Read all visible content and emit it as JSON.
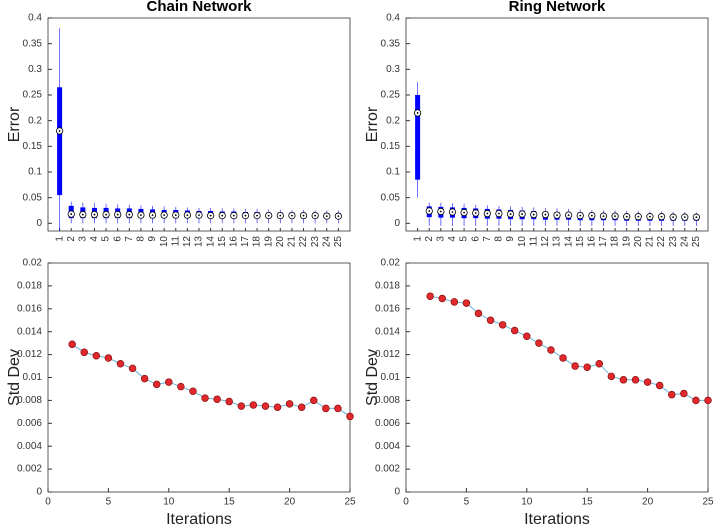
{
  "chart_data": [
    {
      "type": "box",
      "title": "Chain Network",
      "y_label": "Error",
      "color": "#0000ff",
      "categories": [
        "1",
        "2",
        "3",
        "4",
        "5",
        "6",
        "7",
        "8",
        "9",
        "10",
        "11",
        "12",
        "13",
        "14",
        "15",
        "16",
        "17",
        "18",
        "19",
        "20",
        "21",
        "22",
        "23",
        "24",
        "25"
      ],
      "boxes": [
        {
          "low": -0.014,
          "q1": 0.055,
          "median": 0.18,
          "q3": 0.265,
          "high": 0.38
        },
        {
          "low": 0.0,
          "q1": 0.01,
          "median": 0.018,
          "q3": 0.034,
          "high": 0.042
        },
        {
          "low": 0.0,
          "q1": 0.01,
          "median": 0.017,
          "q3": 0.031,
          "high": 0.04
        },
        {
          "low": 0.0,
          "q1": 0.01,
          "median": 0.017,
          "q3": 0.03,
          "high": 0.039
        },
        {
          "low": 0.0,
          "q1": 0.01,
          "median": 0.017,
          "q3": 0.03,
          "high": 0.038
        },
        {
          "low": 0.0,
          "q1": 0.01,
          "median": 0.017,
          "q3": 0.029,
          "high": 0.037
        },
        {
          "low": 0.0,
          "q1": 0.01,
          "median": 0.017,
          "q3": 0.029,
          "high": 0.036
        },
        {
          "low": 0.0,
          "q1": 0.01,
          "median": 0.016,
          "q3": 0.028,
          "high": 0.035
        },
        {
          "low": 0.0,
          "q1": 0.01,
          "median": 0.016,
          "q3": 0.027,
          "high": 0.034
        },
        {
          "low": 0.0,
          "q1": 0.01,
          "median": 0.016,
          "q3": 0.026,
          "high": 0.033
        },
        {
          "low": 0.0,
          "q1": 0.01,
          "median": 0.016,
          "q3": 0.026,
          "high": 0.032
        },
        {
          "low": 0.0,
          "q1": 0.01,
          "median": 0.016,
          "q3": 0.025,
          "high": 0.031
        },
        {
          "low": 0.0,
          "q1": 0.01,
          "median": 0.016,
          "q3": 0.024,
          "high": 0.03
        },
        {
          "low": 0.0,
          "q1": 0.01,
          "median": 0.015,
          "q3": 0.024,
          "high": 0.03
        },
        {
          "low": 0.0,
          "q1": 0.01,
          "median": 0.015,
          "q3": 0.023,
          "high": 0.029
        },
        {
          "low": 0.0,
          "q1": 0.01,
          "median": 0.015,
          "q3": 0.023,
          "high": 0.029
        },
        {
          "low": 0.0,
          "q1": 0.01,
          "median": 0.015,
          "q3": 0.022,
          "high": 0.028
        },
        {
          "low": 0.0,
          "q1": 0.01,
          "median": 0.015,
          "q3": 0.022,
          "high": 0.028
        },
        {
          "low": 0.0,
          "q1": 0.01,
          "median": 0.015,
          "q3": 0.021,
          "high": 0.027
        },
        {
          "low": 0.0,
          "q1": 0.01,
          "median": 0.015,
          "q3": 0.021,
          "high": 0.027
        },
        {
          "low": 0.0,
          "q1": 0.01,
          "median": 0.015,
          "q3": 0.021,
          "high": 0.026
        },
        {
          "low": 0.0,
          "q1": 0.01,
          "median": 0.015,
          "q3": 0.02,
          "high": 0.026
        },
        {
          "low": 0.0,
          "q1": 0.01,
          "median": 0.015,
          "q3": 0.02,
          "high": 0.025
        },
        {
          "low": 0.0,
          "q1": 0.01,
          "median": 0.014,
          "q3": 0.02,
          "high": 0.025
        },
        {
          "low": 0.0,
          "q1": 0.009,
          "median": 0.014,
          "q3": 0.02,
          "high": 0.025
        }
      ],
      "ylim": [
        -0.015,
        0.4
      ],
      "yticks": [
        0,
        0.05,
        0.1,
        0.15,
        0.2,
        0.25,
        0.3,
        0.35,
        0.4
      ]
    },
    {
      "type": "box",
      "title": "Ring Network",
      "y_label": "Error",
      "color": "#0000ff",
      "categories": [
        "1",
        "2",
        "3",
        "4",
        "5",
        "6",
        "7",
        "8",
        "9",
        "10",
        "11",
        "12",
        "13",
        "14",
        "15",
        "16",
        "17",
        "18",
        "19",
        "20",
        "21",
        "22",
        "23",
        "24",
        "25"
      ],
      "boxes": [
        {
          "low": 0.05,
          "q1": 0.085,
          "median": 0.215,
          "q3": 0.25,
          "high": 0.275
        },
        {
          "low": -0.005,
          "q1": 0.012,
          "median": 0.024,
          "q3": 0.033,
          "high": 0.04
        },
        {
          "low": -0.005,
          "q1": 0.011,
          "median": 0.023,
          "q3": 0.032,
          "high": 0.04
        },
        {
          "low": -0.005,
          "q1": 0.011,
          "median": 0.022,
          "q3": 0.031,
          "high": 0.039
        },
        {
          "low": -0.005,
          "q1": 0.01,
          "median": 0.021,
          "q3": 0.03,
          "high": 0.038
        },
        {
          "low": -0.005,
          "q1": 0.01,
          "median": 0.02,
          "q3": 0.029,
          "high": 0.036
        },
        {
          "low": -0.005,
          "q1": 0.009,
          "median": 0.019,
          "q3": 0.028,
          "high": 0.035
        },
        {
          "low": -0.005,
          "q1": 0.009,
          "median": 0.019,
          "q3": 0.027,
          "high": 0.034
        },
        {
          "low": -0.005,
          "q1": 0.008,
          "median": 0.018,
          "q3": 0.026,
          "high": 0.033
        },
        {
          "low": -0.005,
          "q1": 0.008,
          "median": 0.018,
          "q3": 0.025,
          "high": 0.032
        },
        {
          "low": -0.005,
          "q1": 0.008,
          "median": 0.017,
          "q3": 0.024,
          "high": 0.031
        },
        {
          "low": -0.005,
          "q1": 0.007,
          "median": 0.017,
          "q3": 0.023,
          "high": 0.03
        },
        {
          "low": -0.005,
          "q1": 0.007,
          "median": 0.016,
          "q3": 0.022,
          "high": 0.029
        },
        {
          "low": -0.005,
          "q1": 0.007,
          "median": 0.016,
          "q3": 0.021,
          "high": 0.028
        },
        {
          "low": -0.005,
          "q1": 0.006,
          "median": 0.015,
          "q3": 0.021,
          "high": 0.027
        },
        {
          "low": -0.005,
          "q1": 0.006,
          "median": 0.015,
          "q3": 0.02,
          "high": 0.026
        },
        {
          "low": -0.005,
          "q1": 0.006,
          "median": 0.014,
          "q3": 0.019,
          "high": 0.025
        },
        {
          "low": -0.005,
          "q1": 0.006,
          "median": 0.014,
          "q3": 0.019,
          "high": 0.025
        },
        {
          "low": -0.005,
          "q1": 0.005,
          "median": 0.013,
          "q3": 0.018,
          "high": 0.024
        },
        {
          "low": -0.005,
          "q1": 0.005,
          "median": 0.013,
          "q3": 0.018,
          "high": 0.024
        },
        {
          "low": -0.005,
          "q1": 0.005,
          "median": 0.013,
          "q3": 0.017,
          "high": 0.023
        },
        {
          "low": -0.005,
          "q1": 0.005,
          "median": 0.013,
          "q3": 0.017,
          "high": 0.023
        },
        {
          "low": -0.005,
          "q1": 0.005,
          "median": 0.012,
          "q3": 0.016,
          "high": 0.022
        },
        {
          "low": -0.005,
          "q1": 0.005,
          "median": 0.012,
          "q3": 0.016,
          "high": 0.022
        },
        {
          "low": -0.005,
          "q1": 0.005,
          "median": 0.012,
          "q3": 0.015,
          "high": 0.021
        }
      ],
      "ylim": [
        -0.015,
        0.4
      ],
      "yticks": [
        0,
        0.05,
        0.1,
        0.15,
        0.2,
        0.25,
        0.3,
        0.35,
        0.4
      ]
    },
    {
      "type": "line",
      "x_label": "Iterations",
      "y_label": "Std Dev",
      "x": [
        2,
        3,
        4,
        5,
        6,
        7,
        8,
        9,
        10,
        11,
        12,
        13,
        14,
        15,
        16,
        17,
        18,
        19,
        20,
        21,
        22,
        23,
        24,
        25
      ],
      "series": [
        {
          "color": "#6ab4dc",
          "marker_color": "#e0282d",
          "values": [
            0.0129,
            0.0122,
            0.0119,
            0.0117,
            0.0112,
            0.0108,
            0.0099,
            0.0094,
            0.0096,
            0.0092,
            0.0088,
            0.0082,
            0.0081,
            0.0079,
            0.0075,
            0.0076,
            0.0075,
            0.0074,
            0.0077,
            0.0074,
            0.008,
            0.0073,
            0.0073,
            0.0066
          ]
        }
      ],
      "xlim": [
        0,
        25
      ],
      "xticks": [
        0,
        5,
        10,
        15,
        20,
        25
      ],
      "ylim": [
        0,
        0.02
      ],
      "yticks": [
        0,
        0.002,
        0.004,
        0.006,
        0.008,
        0.01,
        0.012,
        0.014,
        0.016,
        0.018,
        0.02
      ]
    },
    {
      "type": "line",
      "x_label": "Iterations",
      "y_label": "Std Dev",
      "x": [
        2,
        3,
        4,
        5,
        6,
        7,
        8,
        9,
        10,
        11,
        12,
        13,
        14,
        15,
        16,
        17,
        18,
        19,
        20,
        21,
        22,
        23,
        24,
        25
      ],
      "series": [
        {
          "color": "#6ab4dc",
          "marker_color": "#e0282d",
          "values": [
            0.0171,
            0.0169,
            0.0166,
            0.0165,
            0.0156,
            0.015,
            0.0146,
            0.0141,
            0.0136,
            0.013,
            0.0124,
            0.0117,
            0.011,
            0.0109,
            0.0112,
            0.0101,
            0.0098,
            0.0098,
            0.0096,
            0.0093,
            0.0085,
            0.0086,
            0.008,
            0.008
          ]
        }
      ],
      "xlim": [
        0,
        25
      ],
      "xticks": [
        0,
        5,
        10,
        15,
        20,
        25
      ],
      "ylim": [
        0,
        0.02
      ],
      "yticks": [
        0,
        0.002,
        0.004,
        0.006,
        0.008,
        0.01,
        0.012,
        0.014,
        0.016,
        0.018,
        0.02
      ]
    }
  ]
}
